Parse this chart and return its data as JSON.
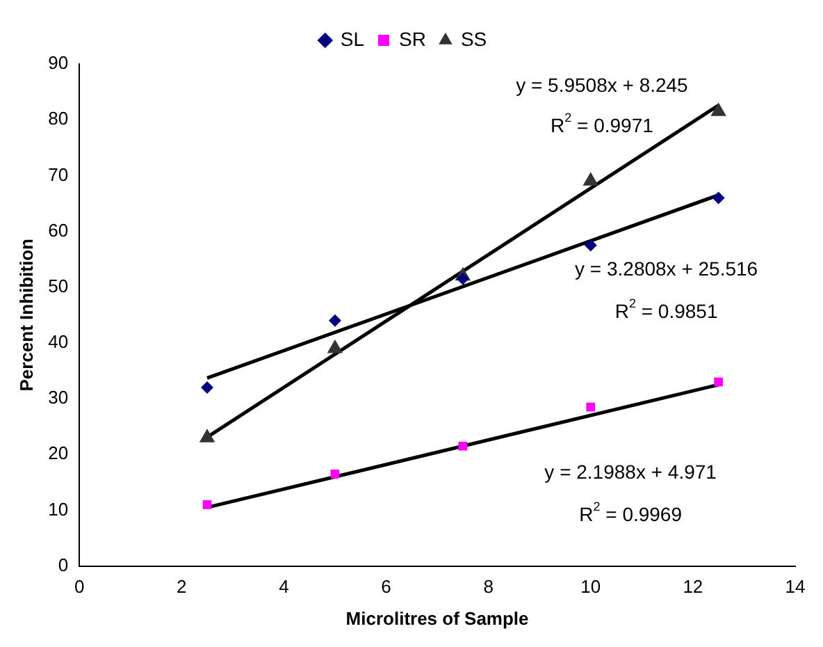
{
  "chart_data": {
    "type": "scatter",
    "xlabel": "Microlitres of Sample",
    "ylabel": "Percent Inhibition",
    "xlim": [
      0,
      14
    ],
    "xticks": [
      0,
      2,
      4,
      6,
      8,
      10,
      12,
      14
    ],
    "ylim": [
      0,
      90
    ],
    "yticks": [
      0,
      10,
      20,
      30,
      40,
      50,
      60,
      70,
      80,
      90
    ],
    "grid": false,
    "legend": "top",
    "series": [
      {
        "name": "SL",
        "type": "scatter",
        "marker": "diamond",
        "color": "#000080",
        "x": [
          2.5,
          5,
          7.5,
          10,
          12.5
        ],
        "values": [
          32,
          44,
          51.5,
          57.5,
          66
        ]
      },
      {
        "name": "SR",
        "type": "scatter",
        "marker": "square",
        "color": "#ff00ff",
        "x": [
          2.5,
          5,
          7.5,
          10,
          12.5
        ],
        "values": [
          11,
          16.5,
          21.5,
          28.5,
          33
        ]
      },
      {
        "name": "SS",
        "type": "scatter",
        "marker": "triangle",
        "color": "#333333",
        "x": [
          2.5,
          5,
          7.5,
          10,
          12.5
        ],
        "values": [
          23,
          39,
          52,
          69,
          81.5
        ]
      },
      {
        "type": "line",
        "marker": "none",
        "line_style": "solid",
        "color": "#000000",
        "x": [
          2.5,
          12.5
        ],
        "values": [
          33.7,
          66.5
        ]
      },
      {
        "type": "line",
        "marker": "none",
        "line_style": "solid",
        "color": "#000000",
        "x": [
          2.5,
          12.5
        ],
        "values": [
          10.5,
          32.5
        ]
      },
      {
        "type": "line",
        "marker": "none",
        "line_style": "solid",
        "color": "#000000",
        "x": [
          2.5,
          12.5
        ],
        "values": [
          23.1,
          82.6
        ]
      }
    ],
    "annotations": [
      "y = 5.9508x + 8.245",
      "R$^{2}$ = 0.9971",
      "y = 3.2808x + 25.516",
      "R$^{2}$ = 0.9851",
      "y = 2.1988x + 4.971",
      "R$^{2}$ = 0.9969"
    ]
  }
}
